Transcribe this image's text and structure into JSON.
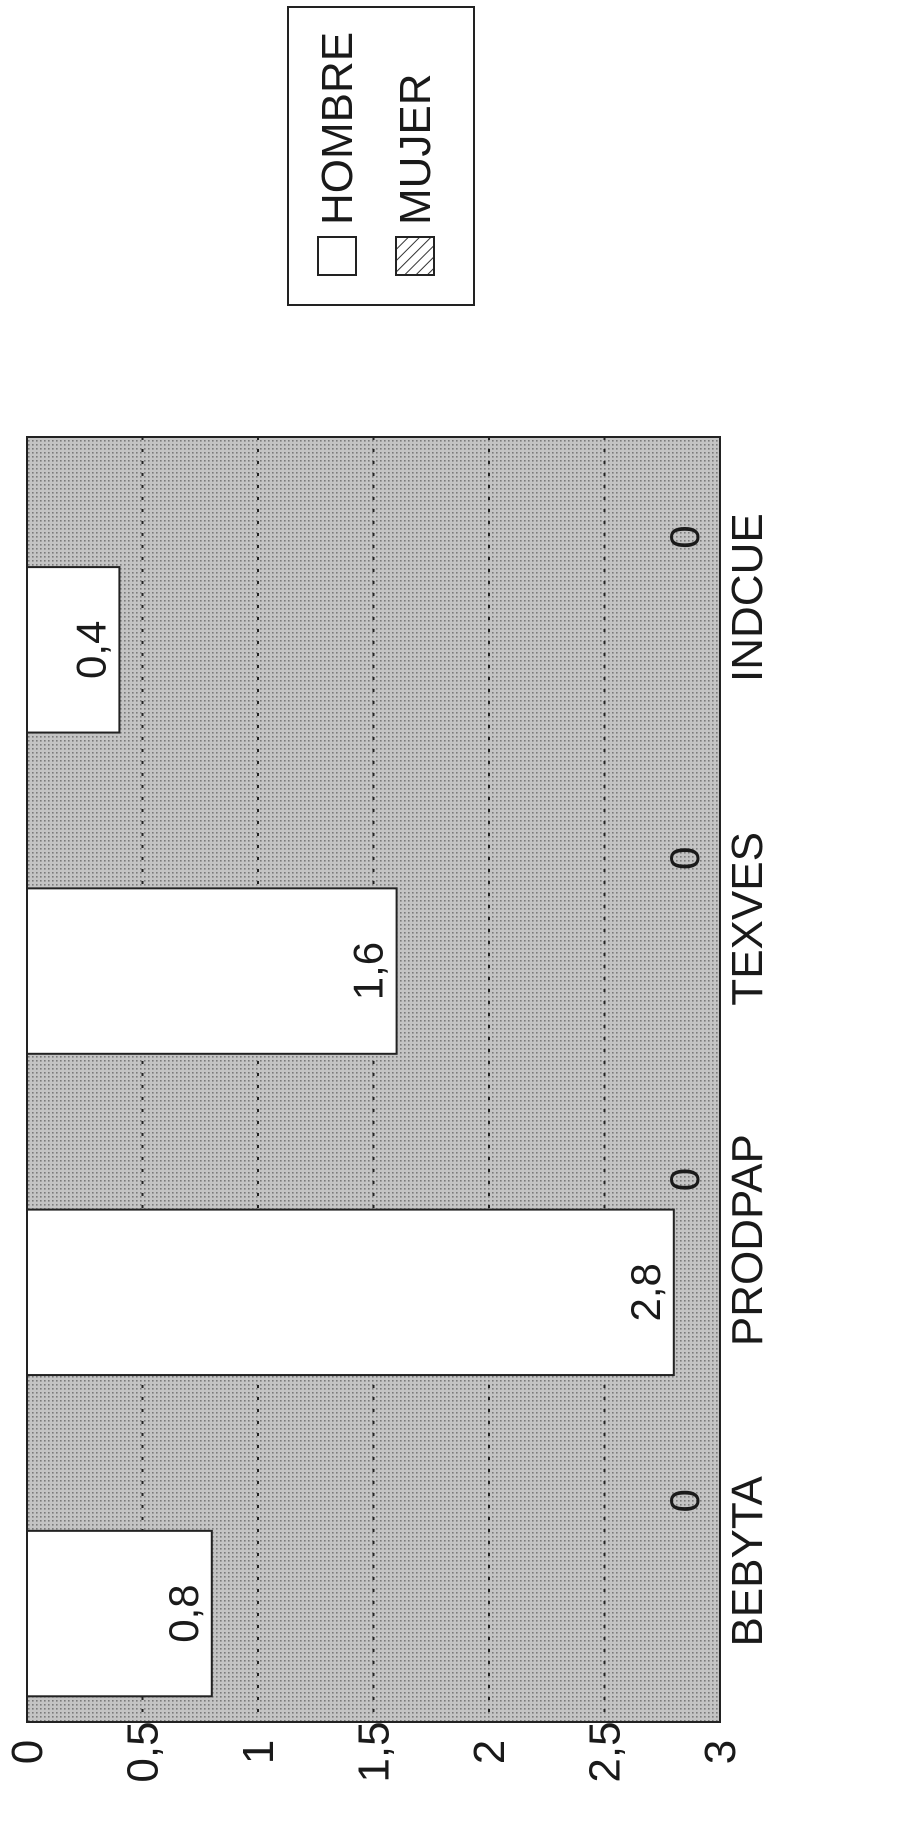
{
  "chart_data": {
    "type": "bar",
    "orientation": "rotated 90° counter-clockwise (value axis runs left-to-right, categories run bottom-to-top)",
    "categories": [
      "BEBYTA",
      "PRODPAP",
      "TEXVES",
      "INDCUE"
    ],
    "series": [
      {
        "name": "HOMBRE",
        "values": [
          0.8,
          2.8,
          1.6,
          0.4
        ],
        "labels": [
          "0,8",
          "2,8",
          "1,6",
          "0,4"
        ],
        "fill": "#ffffff"
      },
      {
        "name": "MUJER",
        "values": [
          0,
          0,
          0,
          0
        ],
        "labels": [
          "0",
          "0",
          "0",
          "0"
        ],
        "fill": "hatched"
      }
    ],
    "ylim": [
      0,
      3
    ],
    "yticks": [
      0,
      0.5,
      1,
      1.5,
      2,
      2.5,
      3
    ],
    "ytick_labels": [
      "0",
      "0,5",
      "1",
      "1,5",
      "2",
      "2,5",
      "3"
    ],
    "grid": true,
    "legend_position": "top-right",
    "plot_background": "#b8b8b8"
  }
}
